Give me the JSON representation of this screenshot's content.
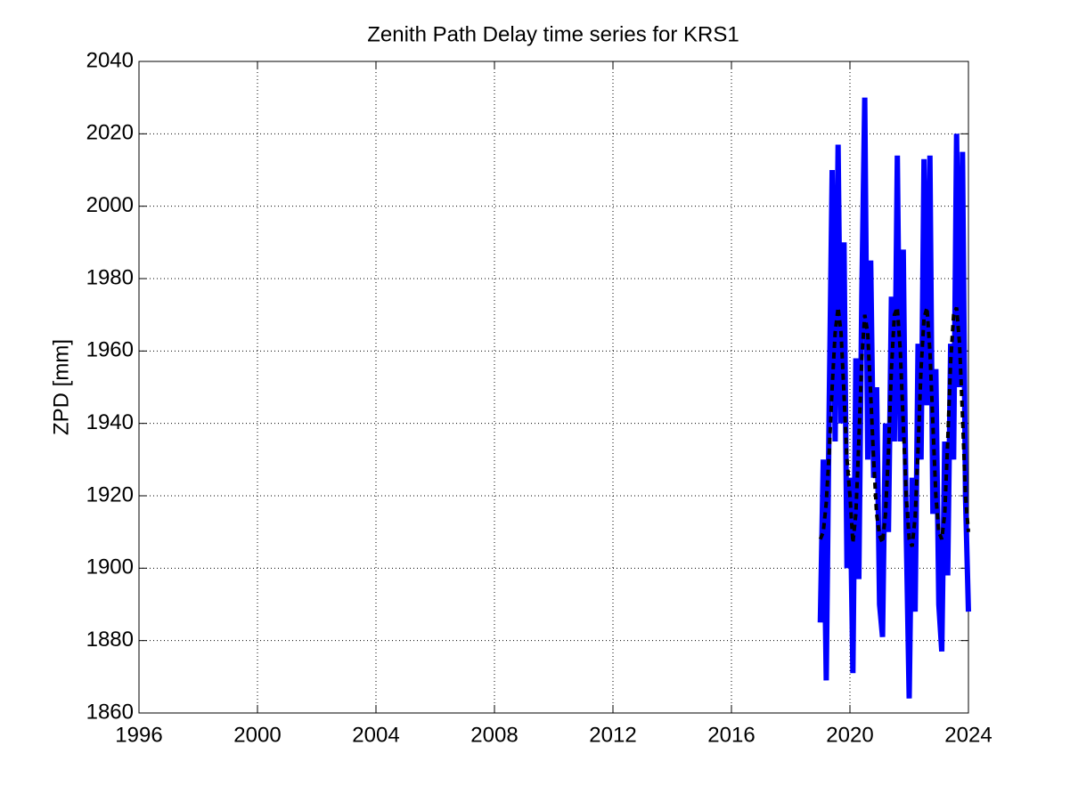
{
  "chart_data": {
    "type": "line",
    "title": "Zenith Path Delay time series for KRS1",
    "ylabel": "ZPD [mm]",
    "x": [
      2019.0,
      2019.1,
      2019.2,
      2019.3,
      2019.4,
      2019.5,
      2019.6,
      2019.7,
      2019.8,
      2019.9,
      2020.0,
      2020.1,
      2020.2,
      2020.3,
      2020.4,
      2020.5,
      2020.6,
      2020.7,
      2020.8,
      2020.9,
      2021.0,
      2021.1,
      2021.2,
      2021.3,
      2021.4,
      2021.5,
      2021.6,
      2021.7,
      2021.8,
      2021.9,
      2022.0,
      2022.1,
      2022.2,
      2022.3,
      2022.4,
      2022.5,
      2022.6,
      2022.7,
      2022.8,
      2022.9,
      2023.0,
      2023.1,
      2023.2,
      2023.3,
      2023.4,
      2023.5,
      2023.6,
      2023.7,
      2023.8,
      2023.9,
      2024.0
    ],
    "series": [
      {
        "color": "#0000ff",
        "style": "solid",
        "values": [
          1885,
          1930,
          1869,
          1945,
          2010,
          1935,
          2017,
          1940,
          1990,
          1900,
          1925,
          1871,
          1958,
          1897,
          1975,
          2030,
          1930,
          1985,
          1925,
          1950,
          1890,
          1881,
          1940,
          1910,
          1975,
          1935,
          2014,
          1935,
          1988,
          1910,
          1864,
          1925,
          1888,
          1962,
          1930,
          2013,
          1945,
          2014,
          1915,
          1955,
          1890,
          1877,
          1935,
          1898,
          1962,
          1930,
          2020,
          1950,
          2015,
          1920,
          1888
        ]
      },
      {
        "color": "#000000",
        "style": "dashed",
        "values": [
          1908,
          1910,
          1918,
          1932,
          1950,
          1965,
          1972,
          1965,
          1948,
          1930,
          1920,
          1907,
          1915,
          1935,
          1958,
          1970,
          1965,
          1948,
          1930,
          1915,
          1909,
          1907,
          1915,
          1932,
          1955,
          1970,
          1972,
          1960,
          1940,
          1920,
          1908,
          1906,
          1914,
          1933,
          1955,
          1969,
          1972,
          1960,
          1940,
          1920,
          1910,
          1908,
          1915,
          1935,
          1957,
          1970,
          1972,
          1962,
          1942,
          1920,
          1910
        ]
      }
    ],
    "xlim": [
      1996,
      2024
    ],
    "xticks": [
      1996,
      2000,
      2004,
      2008,
      2012,
      2016,
      2020,
      2024
    ],
    "ylim": [
      1860,
      2040
    ],
    "yticks": [
      1860,
      1880,
      1900,
      1920,
      1940,
      1960,
      1980,
      2000,
      2020,
      2040
    ],
    "grid": true
  }
}
